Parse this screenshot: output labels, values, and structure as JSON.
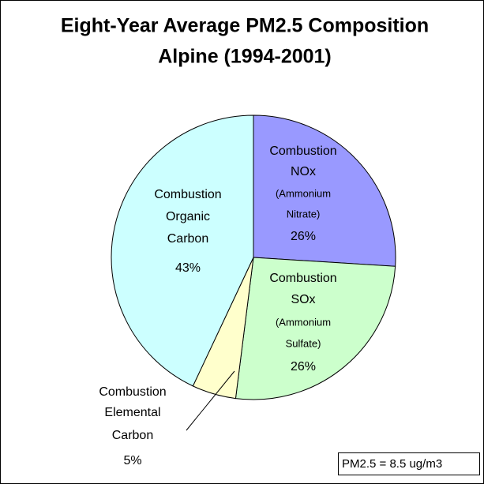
{
  "chart_data": {
    "type": "pie",
    "title": "Eight-Year Average PM2.5 Composition",
    "subtitle": "Alpine (1994-2001)",
    "labels": [
      [
        "Combustion",
        "NOx",
        "(Ammonium",
        "Nitrate)"
      ],
      [
        "Combustion",
        "SOx",
        "(Ammonium",
        "Sulfate)"
      ],
      [
        "Combustion",
        "Elemental",
        "Carbon"
      ],
      [
        "Combustion",
        "Organic",
        "Carbon"
      ]
    ],
    "values": [
      26,
      26,
      5,
      43
    ],
    "value_labels": [
      "26%",
      "26%",
      "5%",
      "43%"
    ],
    "colors": [
      "#9999ff",
      "#ccffcc",
      "#ffffcc",
      "#ccffff"
    ],
    "annotation": "PM2.5 = 8.5 ug/m3"
  }
}
